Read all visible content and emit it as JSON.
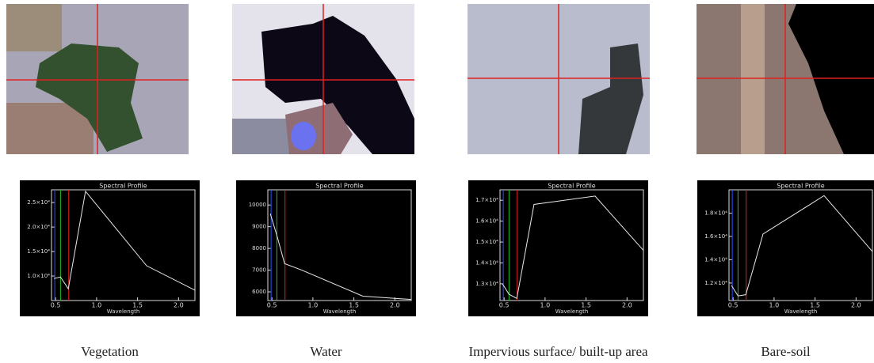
{
  "chart_data": [
    {
      "type": "line",
      "title": "Spectral Profile",
      "xlabel": "Wavelength",
      "caption": "Vegetation",
      "x": [
        0.48,
        0.56,
        0.655,
        0.865,
        1.61,
        2.2
      ],
      "series": [
        {
          "color": "#e8e8e8",
          "values": [
            9500,
            9800,
            7400,
            27300,
            12100,
            7100
          ]
        }
      ],
      "vlines": [
        {
          "x": 0.49,
          "color": "#3050ff"
        },
        {
          "x": 0.56,
          "color": "#20c020"
        },
        {
          "x": 0.66,
          "color": "#e02020"
        }
      ],
      "xlim": [
        0.45,
        2.2
      ],
      "ylim": [
        5000,
        27600
      ],
      "xticks": [
        0.5,
        {
          "value": 1.0,
          "label": "1.0"
        },
        1.5,
        {
          "value": 2.0,
          "label": "2.0"
        }
      ],
      "yticks": [
        {
          "value": 10000,
          "label": "1.0×10⁴"
        },
        {
          "value": 15000,
          "label": "1.5×10⁴"
        },
        {
          "value": 20000,
          "label": "2.0×10⁴"
        },
        {
          "value": 25000,
          "label": "2.5×10⁴"
        }
      ]
    },
    {
      "type": "line",
      "title": "Spectral Profile",
      "xlabel": "Wavelength",
      "caption": "Water",
      "x": [
        0.48,
        0.56,
        0.655,
        0.865,
        1.61,
        2.2
      ],
      "series": [
        {
          "color": "#e8e8e8",
          "values": [
            9600,
            8600,
            7300,
            7000,
            5800,
            5650
          ]
        }
      ],
      "vlines": [
        {
          "x": 0.49,
          "color": "#3050ff"
        },
        {
          "x": 0.56,
          "color": "#20c020"
        },
        {
          "x": 0.66,
          "color": "#e02020"
        }
      ],
      "xlim": [
        0.45,
        2.2
      ],
      "ylim": [
        5600,
        10700
      ],
      "xticks": [
        0.5,
        {
          "value": 1.0,
          "label": "1.0"
        },
        1.5,
        {
          "value": 2.0,
          "label": "2.0"
        }
      ],
      "yticks": [
        6000,
        7000,
        8000,
        9000,
        10000
      ]
    },
    {
      "type": "line",
      "title": "Spectral Profile",
      "xlabel": "Wavelength",
      "caption": "Impervious surface/ built-up area",
      "x": [
        0.48,
        0.56,
        0.655,
        0.865,
        1.61,
        2.2
      ],
      "series": [
        {
          "color": "#e8e8e8",
          "values": [
            13000,
            12500,
            12300,
            16800,
            17200,
            14600
          ]
        }
      ],
      "vlines": [
        {
          "x": 0.49,
          "color": "#3050ff"
        },
        {
          "x": 0.56,
          "color": "#20c020"
        },
        {
          "x": 0.66,
          "color": "#e02020"
        }
      ],
      "xlim": [
        0.45,
        2.2
      ],
      "ylim": [
        12200,
        17500
      ],
      "xticks": [
        0.5,
        {
          "value": 1.0,
          "label": "1.0"
        },
        1.5,
        {
          "value": 2.0,
          "label": "2.0"
        }
      ],
      "yticks": [
        {
          "value": 13000,
          "label": "1.3×10⁴"
        },
        {
          "value": 14000,
          "label": "1.4×10⁴"
        },
        {
          "value": 15000,
          "label": "1.5×10⁴"
        },
        {
          "value": 16000,
          "label": "1.6×10⁴"
        },
        {
          "value": 17000,
          "label": "1.7×10⁴"
        }
      ]
    },
    {
      "type": "line",
      "title": "Spectral Profile",
      "xlabel": "Wavelength",
      "caption": "Bare-soil",
      "x": [
        0.48,
        0.56,
        0.655,
        0.865,
        1.61,
        2.2
      ],
      "series": [
        {
          "color": "#e8e8e8",
          "values": [
            11800,
            10900,
            11000,
            16200,
            19500,
            14700
          ]
        }
      ],
      "vlines": [
        {
          "x": 0.49,
          "color": "#3050ff"
        },
        {
          "x": 0.56,
          "color": "#20c020"
        },
        {
          "x": 0.66,
          "color": "#e02020"
        }
      ],
      "xlim": [
        0.45,
        2.2
      ],
      "ylim": [
        10500,
        20000
      ],
      "xticks": [
        0.5,
        {
          "value": 1.0,
          "label": "1.0"
        },
        1.5,
        {
          "value": 2.0,
          "label": "2.0"
        }
      ],
      "yticks": [
        {
          "value": 12000,
          "label": "1.2×10⁴"
        },
        {
          "value": 14000,
          "label": "1.4×10⁴"
        },
        {
          "value": 16000,
          "label": "1.6×10⁴"
        },
        {
          "value": 18000,
          "label": "1.8×10⁴"
        }
      ]
    }
  ]
}
